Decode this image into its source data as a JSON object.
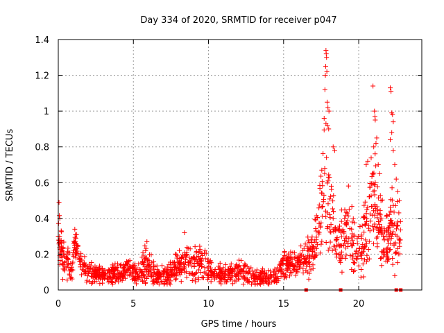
{
  "chart_data": {
    "type": "scatter",
    "title": "Day 334 of 2020, SRMTID for receiver p047",
    "xlabel": "GPS time / hours",
    "ylabel": "SRMTID / TECUs",
    "xlim": [
      0,
      24.2
    ],
    "ylim": [
      0,
      1.4
    ],
    "xticks": [
      0,
      5,
      10,
      15,
      20
    ],
    "yticks": [
      0,
      0.2,
      0.4,
      0.6,
      0.8,
      1.0,
      1.2,
      1.4
    ],
    "xtick_labels": [
      "0",
      "5",
      "10",
      "15",
      "20"
    ],
    "ytick_labels": [
      "0",
      "0.2",
      "0.4",
      "0.6",
      "0.8",
      "1",
      "1.2",
      "1.4"
    ],
    "grid": true,
    "marker": "plus",
    "series_color": "#ff0000",
    "zero_markers_x": [
      16.5,
      18.8,
      22.5,
      22.8
    ],
    "series": [
      {
        "name": "SRMTID",
        "profile": [
          [
            0.0,
            0.3,
            0.09
          ],
          [
            0.3,
            0.2,
            0.08
          ],
          [
            0.6,
            0.15,
            0.07
          ],
          [
            0.9,
            0.12,
            0.05
          ],
          [
            1.1,
            0.28,
            0.06
          ],
          [
            1.4,
            0.15,
            0.05
          ],
          [
            2.0,
            0.1,
            0.04
          ],
          [
            3.0,
            0.08,
            0.03
          ],
          [
            4.0,
            0.09,
            0.04
          ],
          [
            4.6,
            0.12,
            0.04
          ],
          [
            5.2,
            0.08,
            0.04
          ],
          [
            5.8,
            0.14,
            0.07
          ],
          [
            6.5,
            0.08,
            0.04
          ],
          [
            7.0,
            0.07,
            0.04
          ],
          [
            7.6,
            0.1,
            0.05
          ],
          [
            8.4,
            0.16,
            0.08
          ],
          [
            9.0,
            0.14,
            0.07
          ],
          [
            9.6,
            0.14,
            0.07
          ],
          [
            10.5,
            0.08,
            0.04
          ],
          [
            11.0,
            0.08,
            0.04
          ],
          [
            12.0,
            0.11,
            0.05
          ],
          [
            13.0,
            0.07,
            0.03
          ],
          [
            14.5,
            0.07,
            0.03
          ],
          [
            15.0,
            0.14,
            0.06
          ],
          [
            15.8,
            0.14,
            0.05
          ],
          [
            16.5,
            0.18,
            0.06
          ],
          [
            17.0,
            0.22,
            0.08
          ],
          [
            17.3,
            0.35,
            0.12
          ],
          [
            17.6,
            0.5,
            0.18
          ],
          [
            17.8,
            0.6,
            0.25
          ],
          [
            18.1,
            0.45,
            0.18
          ],
          [
            18.5,
            0.3,
            0.1
          ],
          [
            18.8,
            0.25,
            0.1
          ],
          [
            19.3,
            0.4,
            0.15
          ],
          [
            19.7,
            0.25,
            0.12
          ],
          [
            20.0,
            0.2,
            0.08
          ],
          [
            20.5,
            0.35,
            0.2
          ],
          [
            20.9,
            0.5,
            0.2
          ],
          [
            21.3,
            0.4,
            0.15
          ],
          [
            21.7,
            0.3,
            0.12
          ],
          [
            22.1,
            0.3,
            0.15
          ],
          [
            22.5,
            0.35,
            0.15
          ],
          [
            22.8,
            0.3,
            0.15
          ]
        ],
        "spikes": [
          [
            17.82,
            1.34
          ],
          [
            17.84,
            1.32
          ],
          [
            17.86,
            1.3
          ],
          [
            17.8,
            1.25
          ],
          [
            17.88,
            1.22
          ],
          [
            17.78,
            1.2
          ],
          [
            17.75,
            1.12
          ],
          [
            17.9,
            1.05
          ],
          [
            17.95,
            1.02
          ],
          [
            18.02,
            1.0
          ],
          [
            17.7,
            0.96
          ],
          [
            17.82,
            0.93
          ],
          [
            17.92,
            0.92
          ],
          [
            18.0,
            0.9
          ],
          [
            18.3,
            0.8
          ],
          [
            18.4,
            0.78
          ],
          [
            20.5,
            0.7
          ],
          [
            20.6,
            0.72
          ],
          [
            21.0,
            0.8
          ],
          [
            21.05,
            1.0
          ],
          [
            21.08,
            0.97
          ],
          [
            21.1,
            0.95
          ],
          [
            20.95,
            1.14
          ],
          [
            21.15,
            0.82
          ],
          [
            21.2,
            0.85
          ],
          [
            21.3,
            0.7
          ],
          [
            21.4,
            0.65
          ],
          [
            21.1,
            0.6
          ],
          [
            22.1,
            1.13
          ],
          [
            22.15,
            1.11
          ],
          [
            22.2,
            0.99
          ],
          [
            22.25,
            0.98
          ],
          [
            22.3,
            0.94
          ],
          [
            22.2,
            0.88
          ],
          [
            22.1,
            0.84
          ],
          [
            22.3,
            0.78
          ],
          [
            22.4,
            0.7
          ],
          [
            22.5,
            0.62
          ],
          [
            22.6,
            0.55
          ],
          [
            22.7,
            0.5
          ],
          [
            0.05,
            0.49
          ],
          [
            0.1,
            0.4
          ],
          [
            1.1,
            0.34
          ],
          [
            8.4,
            0.32
          ],
          [
            5.9,
            0.27
          ],
          [
            22.4,
            0.08
          ],
          [
            0.3,
            0.06
          ]
        ],
        "points_per_hour": 70
      }
    ]
  }
}
